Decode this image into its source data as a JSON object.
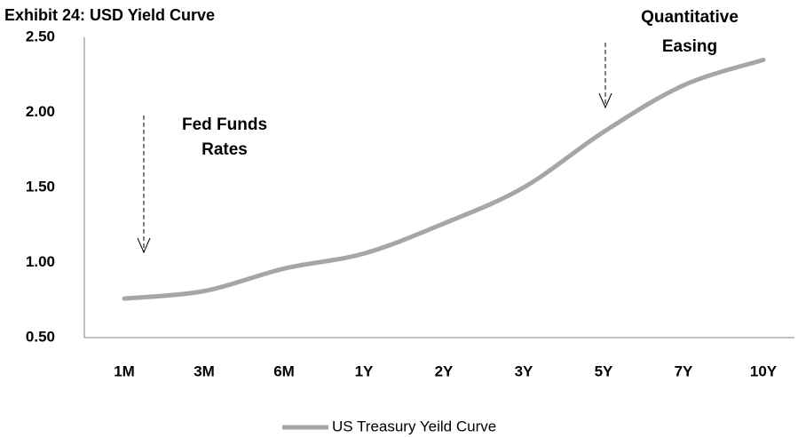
{
  "chart_data": {
    "type": "line",
    "title": "Exhibit 24: USD Yield Curve",
    "categories": [
      "1M",
      "3M",
      "6M",
      "1Y",
      "2Y",
      "3Y",
      "5Y",
      "7Y",
      "10Y"
    ],
    "series": [
      {
        "name": "US Treasury Yeild Curve",
        "color": "#a6a6a6",
        "values": [
          0.76,
          0.81,
          0.96,
          1.06,
          1.26,
          1.5,
          1.87,
          2.18,
          2.35
        ]
      }
    ],
    "ylim": [
      0.5,
      2.5
    ],
    "yticks": [
      {
        "value": 0.5,
        "label": "0.50"
      },
      {
        "value": 1,
        "label": "1.00"
      },
      {
        "value": 1.5,
        "label": "1.50"
      },
      {
        "value": 2,
        "label": "2.00"
      },
      {
        "value": 2.5,
        "label": "2.50"
      }
    ],
    "grid": false,
    "legend": "bottom",
    "annotations": [
      {
        "lines": [
          "Fed Funds",
          "Rates"
        ]
      },
      {
        "lines": [
          "Quantitative",
          "Easing"
        ]
      }
    ]
  }
}
